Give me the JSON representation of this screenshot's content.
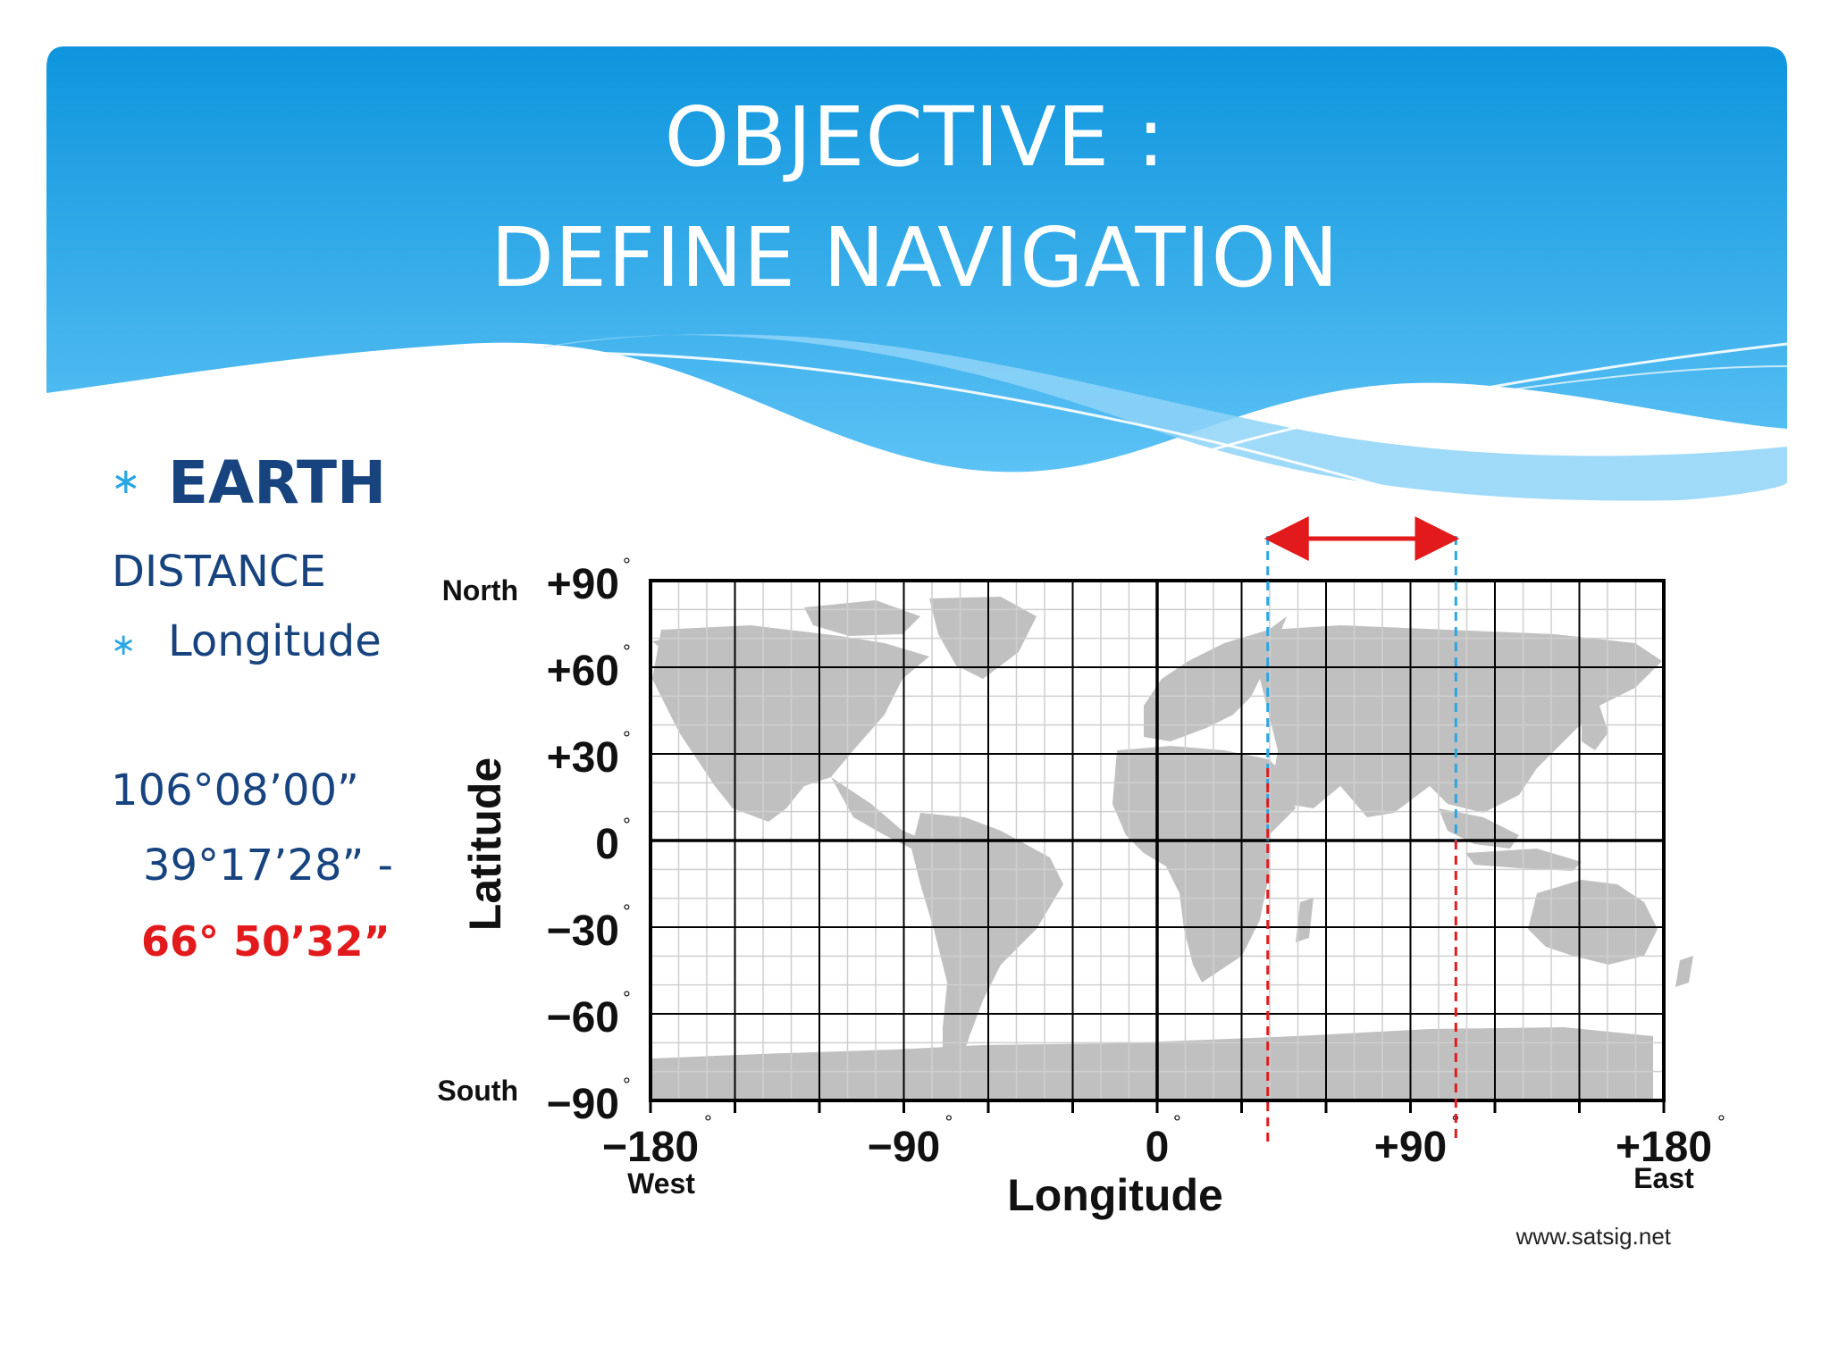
{
  "slide": {
    "title_line1": "OBJECTIVE :",
    "title_line2": "DEFINE NAVIGATION",
    "bullet_symbol": "∗",
    "earth": "EARTH",
    "distance": "DISTANCE",
    "longitude": "Longitude",
    "value1": "106°08’00”",
    "value2": "39°17’28”  -",
    "value3": "66° 50’32”"
  },
  "map": {
    "lat_labels": [
      "+90",
      "+60",
      "+30",
      "0",
      "−30",
      "−60",
      "−90"
    ],
    "lat_values": [
      90,
      60,
      30,
      0,
      -30,
      -60,
      -90
    ],
    "lon_labels": [
      "−180",
      "−90",
      "0",
      "+90",
      "+180"
    ],
    "lon_values": [
      -180,
      -90,
      0,
      90,
      180
    ],
    "north": "North",
    "south": "South",
    "west": "West",
    "east": "East",
    "x_axis_label": "Longitude",
    "y_axis_label": "Latitude",
    "credit": "www.satsig.net",
    "degree_symbol": "°",
    "marker_longitudes": [
      39.29,
      106.13
    ],
    "colors": {
      "land": "#c0c0c0",
      "marker": "#e31a1c",
      "marker_alt": "#29a6e4",
      "grid_major": "#000000",
      "grid_minor": "#cfcfcf"
    }
  }
}
